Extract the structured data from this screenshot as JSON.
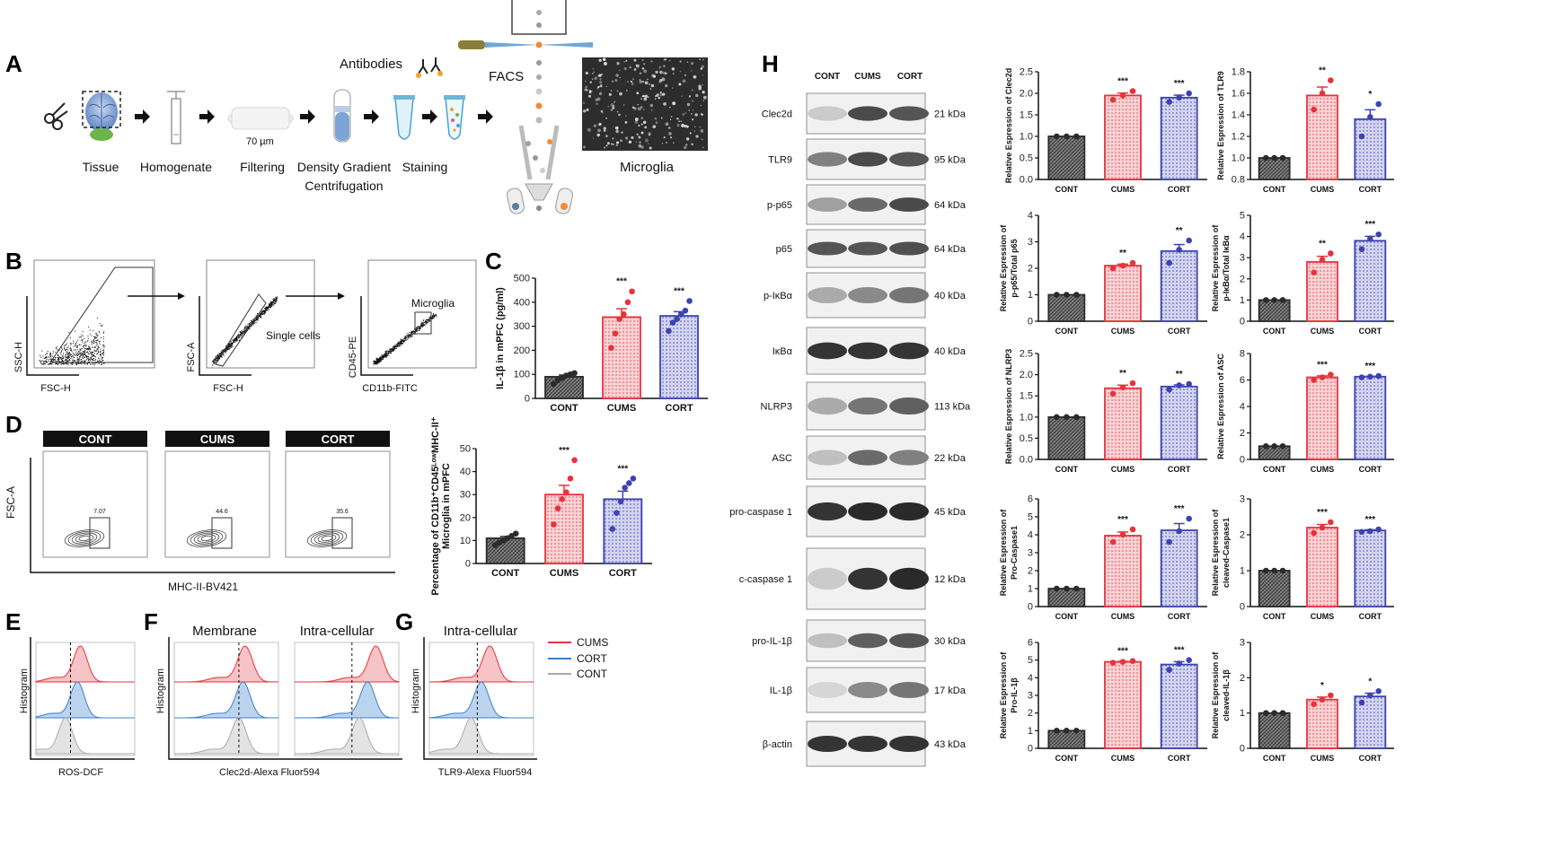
{
  "panels": {
    "A": {
      "label": "A",
      "steps": [
        "Tissue",
        "Homogenate",
        "Filtering",
        "Density Gradient",
        "Centrifugation",
        "Staining",
        "Microglia"
      ],
      "filter_text": "70 µm",
      "antibodies": "Antibodies",
      "facs": "FACS"
    },
    "B": {
      "label": "B",
      "plots": [
        {
          "xlabel": "FSC-H",
          "ylabel": "SSC-H",
          "gate": ""
        },
        {
          "xlabel": "FSC-H",
          "ylabel": "FSC-A",
          "gate": "Single cells"
        },
        {
          "xlabel": "CD11b-FITC",
          "ylabel": "CD45-PE",
          "gate": "Microglia"
        }
      ]
    },
    "C": {
      "label": "C"
    },
    "D": {
      "label": "D",
      "groups": [
        "CONT",
        "CUMS",
        "CORT"
      ],
      "gate_values": [
        "7.07",
        "44.6",
        "35.6"
      ],
      "xlabel": "MHC-II-BV421",
      "ylabel": "FSC-A"
    },
    "E": {
      "label": "E",
      "xlabel": "ROS-DCF",
      "ylabel": "Histogram"
    },
    "F": {
      "label": "F",
      "xlabel": "Clec2d-Alexa Fluor594",
      "ylabel": "Histogram",
      "titles": [
        "Membrane",
        "Intra-cellular"
      ]
    },
    "G": {
      "label": "G",
      "xlabel": "TLR9-Alexa Fluor594",
      "ylabel": "Histogram",
      "titles": [
        "Intra-cellular"
      ]
    },
    "H": {
      "label": "H",
      "lanes": [
        "CONT",
        "CUMS",
        "CORT"
      ],
      "blots": [
        {
          "name": "Clec2d",
          "kda": "21 kDa"
        },
        {
          "name": "TLR9",
          "kda": "95 kDa"
        },
        {
          "name": "p-p65",
          "kda": "64 kDa"
        },
        {
          "name": "p65",
          "kda": "64 kDa"
        },
        {
          "name": "p-IκBα",
          "kda": "40 kDa"
        },
        {
          "name": "IκBα",
          "kda": "40 kDa"
        },
        {
          "name": "NLRP3",
          "kda": "113 kDa"
        },
        {
          "name": "ASC",
          "kda": "22 kDa"
        },
        {
          "name": "pro-caspase 1",
          "kda": "45 kDa"
        },
        {
          "name": "c-caspase 1",
          "kda": "12 kDa"
        },
        {
          "name": "pro-IL-1β",
          "kda": "30 kDa"
        },
        {
          "name": "IL-1β",
          "kda": "17 kDa"
        },
        {
          "name": "β-actin",
          "kda": "43 kDa"
        }
      ]
    },
    "legend": [
      "CUMS",
      "CORT",
      "CONT"
    ]
  },
  "colors": {
    "cont": "#2b2b2b",
    "cums": "#e8323c",
    "cort": "#3d43b0",
    "cums_fill": "#f6c3c6",
    "cort_fill": "#c4c6ec",
    "cont_fill": "#7d7d7d"
  },
  "chart_data": [
    {
      "id": "C",
      "type": "bar",
      "categories": [
        "CONT",
        "CUMS",
        "CORT"
      ],
      "values": [
        90,
        338,
        343
      ],
      "points": [
        [
          60,
          75,
          85,
          95,
          100,
          105
        ],
        [
          210,
          270,
          330,
          350,
          400,
          445
        ],
        [
          280,
          315,
          330,
          350,
          365,
          405
        ]
      ],
      "sig": [
        "",
        "***",
        "***"
      ],
      "ylabel": "IL-1β in mPFC (pg/ml)",
      "ylim": [
        0,
        500
      ],
      "yticks": [
        0,
        100,
        200,
        300,
        400,
        500
      ]
    },
    {
      "id": "D",
      "type": "bar",
      "categories": [
        "CONT",
        "CUMS",
        "CORT"
      ],
      "values": [
        11,
        30,
        28
      ],
      "points": [
        [
          8,
          9,
          10,
          11,
          12,
          13
        ],
        [
          17,
          24,
          28,
          31,
          37,
          45
        ],
        [
          15,
          22,
          27,
          33,
          35,
          37
        ]
      ],
      "sig": [
        "",
        "***",
        "***"
      ],
      "ylabel": "Percentage of CD11b⁺CD45ᴸᵒʷMHC-II⁺ Microglia in mPFC",
      "ylim": [
        0,
        50
      ],
      "yticks": [
        0,
        10,
        20,
        30,
        40,
        50
      ]
    },
    {
      "id": "H1",
      "type": "bar",
      "categories": [
        "CONT",
        "CUMS",
        "CORT"
      ],
      "values": [
        1.0,
        1.95,
        1.9
      ],
      "points": [
        [
          1,
          1,
          1
        ],
        [
          1.85,
          1.95,
          2.05
        ],
        [
          1.8,
          1.9,
          2.0
        ]
      ],
      "sig": [
        "",
        "***",
        "***"
      ],
      "ylabel": "Relative Espression of Clec2d",
      "ylim": [
        0,
        2.5
      ],
      "yticks": [
        0.0,
        0.5,
        1.0,
        1.5,
        2.0,
        2.5
      ]
    },
    {
      "id": "H2",
      "type": "bar",
      "categories": [
        "CONT",
        "CUMS",
        "CORT"
      ],
      "values": [
        1.0,
        1.58,
        1.36
      ],
      "points": [
        [
          1,
          1,
          1
        ],
        [
          1.45,
          1.6,
          1.72
        ],
        [
          1.2,
          1.38,
          1.5
        ]
      ],
      "sig": [
        "",
        "**",
        "*"
      ],
      "ylabel": "Relative Espression of TLR9",
      "ylim": [
        0.8,
        1.8
      ],
      "yticks": [
        0.8,
        1.0,
        1.2,
        1.4,
        1.6,
        1.8
      ]
    },
    {
      "id": "H3",
      "type": "bar",
      "categories": [
        "CONT",
        "CUMS",
        "CORT"
      ],
      "values": [
        1.0,
        2.1,
        2.65
      ],
      "points": [
        [
          1,
          1,
          1
        ],
        [
          2.0,
          2.1,
          2.2
        ],
        [
          2.2,
          2.7,
          3.05
        ]
      ],
      "sig": [
        "",
        "**",
        "**"
      ],
      "ylabel": "Relative Espression of p-p65/Total p65",
      "ylim": [
        0,
        4
      ],
      "yticks": [
        0,
        1,
        2,
        3,
        4
      ]
    },
    {
      "id": "H4",
      "type": "bar",
      "categories": [
        "CONT",
        "CUMS",
        "CORT"
      ],
      "values": [
        1.0,
        2.8,
        3.8
      ],
      "points": [
        [
          1,
          1,
          1
        ],
        [
          2.3,
          2.9,
          3.2
        ],
        [
          3.4,
          3.9,
          4.1
        ]
      ],
      "sig": [
        "",
        "**",
        "***"
      ],
      "ylabel": "Relative Espression of p-IκBα/Total IκBα",
      "ylim": [
        0,
        5
      ],
      "yticks": [
        0,
        1,
        2,
        3,
        4,
        5
      ]
    },
    {
      "id": "H5",
      "type": "bar",
      "categories": [
        "CONT",
        "CUMS",
        "CORT"
      ],
      "values": [
        1.0,
        1.68,
        1.72
      ],
      "points": [
        [
          1,
          1,
          1
        ],
        [
          1.55,
          1.7,
          1.8
        ],
        [
          1.65,
          1.75,
          1.78
        ]
      ],
      "sig": [
        "",
        "**",
        "**"
      ],
      "ylabel": "Relative Espression of NLRP3",
      "ylim": [
        0,
        2.5
      ],
      "yticks": [
        0.0,
        0.5,
        1.0,
        1.5,
        2.0,
        2.5
      ]
    },
    {
      "id": "H6",
      "type": "bar",
      "categories": [
        "CONT",
        "CUMS",
        "CORT"
      ],
      "values": [
        1.0,
        6.2,
        6.25
      ],
      "points": [
        [
          1,
          1,
          1
        ],
        [
          6.0,
          6.2,
          6.4
        ],
        [
          6.2,
          6.25,
          6.3
        ]
      ],
      "sig": [
        "",
        "***",
        "***"
      ],
      "ylabel": "Relative Espression of ASC",
      "ylim": [
        0,
        8
      ],
      "yticks": [
        0,
        2,
        4,
        6,
        8
      ]
    },
    {
      "id": "H7",
      "type": "bar",
      "categories": [
        "CONT",
        "CUMS",
        "CORT"
      ],
      "values": [
        1.0,
        3.95,
        4.25
      ],
      "points": [
        [
          1,
          1,
          1
        ],
        [
          3.6,
          4.0,
          4.3
        ],
        [
          3.6,
          4.2,
          4.9
        ]
      ],
      "sig": [
        "",
        "***",
        "***"
      ],
      "ylabel": "Relative Espression of Pro-Caspase1",
      "ylim": [
        0,
        6
      ],
      "yticks": [
        0,
        1,
        2,
        3,
        4,
        5,
        6
      ]
    },
    {
      "id": "H8",
      "type": "bar",
      "categories": [
        "CONT",
        "CUMS",
        "CORT"
      ],
      "values": [
        1.0,
        2.2,
        2.12
      ],
      "points": [
        [
          1,
          1,
          1
        ],
        [
          2.05,
          2.2,
          2.35
        ],
        [
          2.08,
          2.1,
          2.15
        ]
      ],
      "sig": [
        "",
        "***",
        "***"
      ],
      "ylabel": "Relative Espression of cleaved-Caspase1",
      "ylim": [
        0,
        3
      ],
      "yticks": [
        0,
        1,
        2,
        3
      ]
    },
    {
      "id": "H9",
      "type": "bar",
      "categories": [
        "CONT",
        "CUMS",
        "CORT"
      ],
      "values": [
        1.0,
        4.9,
        4.75
      ],
      "points": [
        [
          1,
          1,
          1
        ],
        [
          4.85,
          4.9,
          4.95
        ],
        [
          4.45,
          4.8,
          5.0
        ]
      ],
      "sig": [
        "",
        "***",
        "***"
      ],
      "ylabel": "Relative Espression of Pro-IL-1β",
      "ylim": [
        0,
        6
      ],
      "yticks": [
        0,
        1,
        2,
        3,
        4,
        5,
        6
      ]
    },
    {
      "id": "H10",
      "type": "bar",
      "categories": [
        "CONT",
        "CUMS",
        "CORT"
      ],
      "values": [
        1.0,
        1.38,
        1.47
      ],
      "points": [
        [
          1,
          1,
          1
        ],
        [
          1.25,
          1.38,
          1.5
        ],
        [
          1.3,
          1.5,
          1.62
        ]
      ],
      "sig": [
        "",
        "*",
        "*"
      ],
      "ylabel": "Relative Espression of cleaved-IL-1β",
      "ylim": [
        0,
        3
      ],
      "yticks": [
        0,
        1,
        2,
        3
      ]
    }
  ]
}
